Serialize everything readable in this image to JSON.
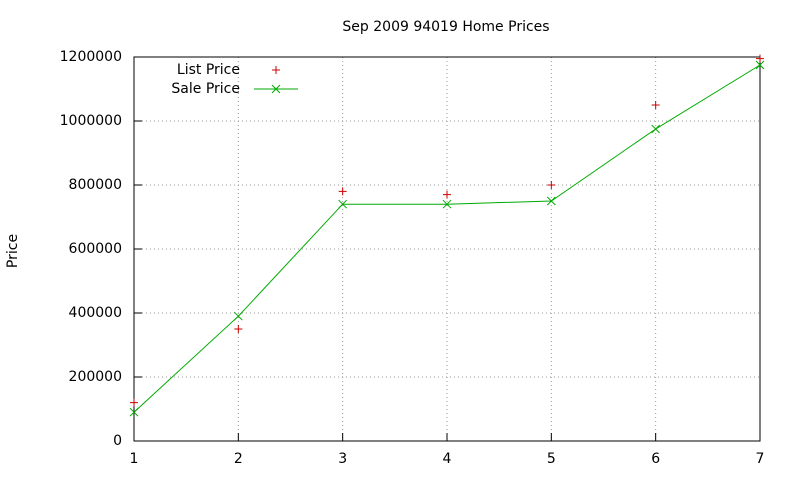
{
  "chart_data": {
    "type": "line",
    "title": "Sep 2009 94019 Home Prices",
    "y_label": "Price",
    "x": [
      1,
      2,
      3,
      4,
      5,
      6,
      7
    ],
    "series": [
      {
        "name": "List Price",
        "color": "#cc0000",
        "marker": "+",
        "line": false,
        "values": [
          120000,
          350000,
          780000,
          770000,
          800000,
          1050000,
          1195000
        ]
      },
      {
        "name": "Sale Price",
        "color": "#00aa00",
        "marker": "x",
        "line": true,
        "values": [
          90000,
          390000,
          740000,
          740000,
          750000,
          975000,
          1175000
        ]
      }
    ],
    "xlim": [
      1,
      7
    ],
    "xticks": [
      1,
      2,
      3,
      4,
      5,
      6,
      7
    ],
    "ylim": [
      0,
      1200000
    ],
    "yticks": [
      0,
      200000,
      400000,
      600000,
      800000,
      1000000,
      1200000
    ],
    "grid": true,
    "legend": "top-left"
  }
}
